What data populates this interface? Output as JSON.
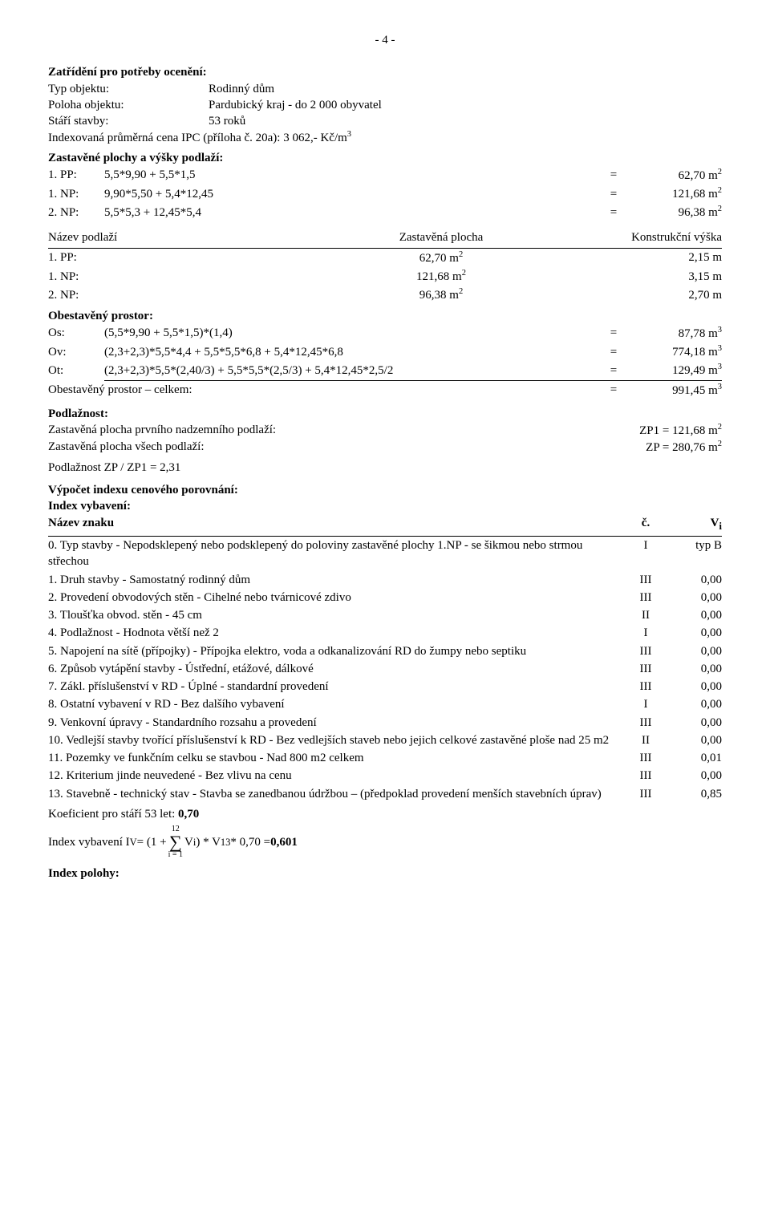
{
  "page_number": "- 4 -",
  "zatrideni": {
    "title": "Zatřídění pro potřeby ocenění:",
    "typ_objektu_label": "Typ objektu:",
    "typ_objektu": "Rodinný dům",
    "poloha_label": "Poloha objektu:",
    "poloha": "Pardubický kraj - do 2 000 obyvatel",
    "stari_label": "Stáří stavby:",
    "stari": "53 roků",
    "ipc_line": "Indexovaná průměrná cena IPC (příloha č. 20a):   3 062,- Kč/m",
    "ipc_sup": "3"
  },
  "zast_plochy": {
    "title": "Zastavěné plochy a výšky podlaží:",
    "rows": [
      {
        "lbl": "1. PP:",
        "expr": "5,5*9,90 + 5,5*1,5",
        "eq": "=",
        "val": "62,70 m",
        "sup": "2"
      },
      {
        "lbl": "1. NP:",
        "expr": "9,90*5,50 + 5,4*12,45",
        "eq": "=",
        "val": "121,68 m",
        "sup": "2"
      },
      {
        "lbl": "2. NP:",
        "expr": "5,5*5,3 + 12,45*5,4",
        "eq": "=",
        "val": "96,38 m",
        "sup": "2"
      }
    ]
  },
  "nazev_podlazi": {
    "h1": "Název podlaží",
    "h2": "Zastavěná plocha",
    "h3": "Konstrukční výška",
    "rows": [
      {
        "c1": "1. PP:",
        "c2": "62,70 m",
        "c2sup": "2",
        "c3": "2,15 m"
      },
      {
        "c1": "1. NP:",
        "c2": "121,68 m",
        "c2sup": "2",
        "c3": "3,15 m"
      },
      {
        "c1": "2. NP:",
        "c2": "96,38 m",
        "c2sup": "2",
        "c3": "2,70 m"
      }
    ]
  },
  "obestaveny": {
    "title": "Obestavěný prostor:",
    "rows": [
      {
        "lbl": "Os:",
        "expr": "(5,5*9,90 + 5,5*1,5)*(1,4)",
        "eq": "=",
        "val": "87,78 m",
        "sup": "3"
      },
      {
        "lbl": "Ov:",
        "expr": "(2,3+2,3)*5,5*4,4 + 5,5*5,5*6,8 + 5,4*12,45*6,8",
        "eq": "=",
        "val": "774,18 m",
        "sup": "3"
      },
      {
        "lbl": "Ot:",
        "expr": "(2,3+2,3)*5,5*(2,40/3) + 5,5*5,5*(2,5/3) + 5,4*12,45*2,5/2",
        "eq": "=",
        "val": "129,49 m",
        "sup": "3"
      }
    ],
    "total_label": "Obestavěný prostor – celkem:",
    "total_eq": "=",
    "total_val": "991,45 m",
    "total_sup": "3"
  },
  "podlaznost": {
    "title": "Podlažnost:",
    "r1_label": "Zastavěná plocha prvního nadzemního podlaží:",
    "r1_val": "ZP1 = 121,68 m",
    "r1_sup": "2",
    "r2_label": "Zastavěná plocha všech podlaží:",
    "r2_val": "ZP = 280,76 m",
    "r2_sup": "2",
    "ratio": "Podlažnost   ZP / ZP1 = 2,31"
  },
  "vypocet_title": "Výpočet indexu cenového porovnání:",
  "index_vybaveni": {
    "title": "Index vybavení:",
    "h1": "Název znaku",
    "h2": "č.",
    "h3": "V",
    "h3sub": "i",
    "rows": [
      {
        "name": "0. Typ stavby - Nepodsklepený nebo podsklepený do poloviny zastavěné plochy 1.NP - se šikmou nebo strmou střechou",
        "c": "I",
        "v": "typ B"
      },
      {
        "name": "1. Druh stavby - Samostatný rodinný dům",
        "c": "III",
        "v": "0,00"
      },
      {
        "name": "2. Provedení obvodových stěn - Cihelné nebo tvárnicové zdivo",
        "c": "III",
        "v": "0,00"
      },
      {
        "name": "3. Tloušťka obvod. stěn - 45 cm",
        "c": "II",
        "v": "0,00"
      },
      {
        "name": "4. Podlažnost - Hodnota větší než 2",
        "c": "I",
        "v": "0,00"
      },
      {
        "name": "5. Napojení na sítě (přípojky) - Přípojka elektro, voda a odkanalizování RD do žumpy nebo   septiku",
        "c": "III",
        "v": "0,00"
      },
      {
        "name": "6. Způsob vytápění stavby - Ústřední, etážové, dálkové",
        "c": "III",
        "v": "0,00"
      },
      {
        "name": "7. Zákl. příslušenství v RD - Úplné - standardní provedení",
        "c": "III",
        "v": "0,00"
      },
      {
        "name": "8. Ostatní vybavení v RD - Bez dalšího vybavení",
        "c": "I",
        "v": "0,00"
      },
      {
        "name": "9. Venkovní úpravy - Standardního rozsahu a provedení",
        "c": "III",
        "v": "0,00"
      },
      {
        "name": "10. Vedlejší stavby tvořící příslušenství k RD - Bez vedlejších staveb nebo jejich celkové zastavěné   ploše   nad 25 m2",
        "c": "II",
        "v": "0,00"
      },
      {
        "name": "11. Pozemky ve funkčním celku   se stavbou - Nad 800 m2 celkem",
        "c": "III",
        "v": "0,01"
      },
      {
        "name": "12. Kriterium jinde neuvedené - Bez vlivu na cenu",
        "c": "III",
        "v": "0,00"
      },
      {
        "name": "13. Stavebně - technický stav - Stavba se zanedbanou údržbou – (předpoklad provedení menších stavebních úprav)",
        "c": "III",
        "v": "0,85"
      }
    ]
  },
  "koef_line": "Koeficient pro stáří 53 let:   0,70",
  "iv_formula": {
    "pre": "Index vybavení I",
    "sub1": "V",
    "mid1": " = (1 + ",
    "sigma_top": "12",
    "sigma_bot": "i = 1",
    "mid2": " V",
    "sub2": "i",
    "mid3": " ) * V",
    "sub3": "13",
    "mid4": "   * 0,70 = ",
    "result": "0,601"
  },
  "index_polohy_title": "Index polohy:"
}
